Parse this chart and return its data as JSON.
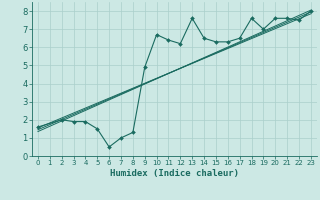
{
  "title": "",
  "xlabel": "Humidex (Indice chaleur)",
  "ylabel": "",
  "bg_color": "#cce8e4",
  "grid_color": "#aacfcb",
  "line_color": "#1a6b60",
  "xlim": [
    -0.5,
    23.5
  ],
  "ylim": [
    0,
    8.5
  ],
  "xticks": [
    0,
    1,
    2,
    3,
    4,
    5,
    6,
    7,
    8,
    9,
    10,
    11,
    12,
    13,
    14,
    15,
    16,
    17,
    18,
    19,
    20,
    21,
    22,
    23
  ],
  "yticks": [
    0,
    1,
    2,
    3,
    4,
    5,
    6,
    7,
    8
  ],
  "scatter_x": [
    0,
    2,
    3,
    4,
    5,
    6,
    7,
    8,
    9,
    10,
    11,
    12,
    13,
    14,
    15,
    16,
    17,
    18,
    19,
    20,
    21,
    22,
    23
  ],
  "scatter_y": [
    1.6,
    2.0,
    1.9,
    1.9,
    1.5,
    0.5,
    1.0,
    1.3,
    4.9,
    6.7,
    6.4,
    6.2,
    7.6,
    6.5,
    6.3,
    6.3,
    6.5,
    7.6,
    7.0,
    7.6,
    7.6,
    7.5,
    8.0
  ],
  "line1_x": [
    0,
    23
  ],
  "line1_y": [
    1.55,
    7.85
  ],
  "line2_x": [
    0,
    23
  ],
  "line2_y": [
    1.45,
    7.95
  ],
  "line3_x": [
    0,
    23
  ],
  "line3_y": [
    1.35,
    8.05
  ]
}
